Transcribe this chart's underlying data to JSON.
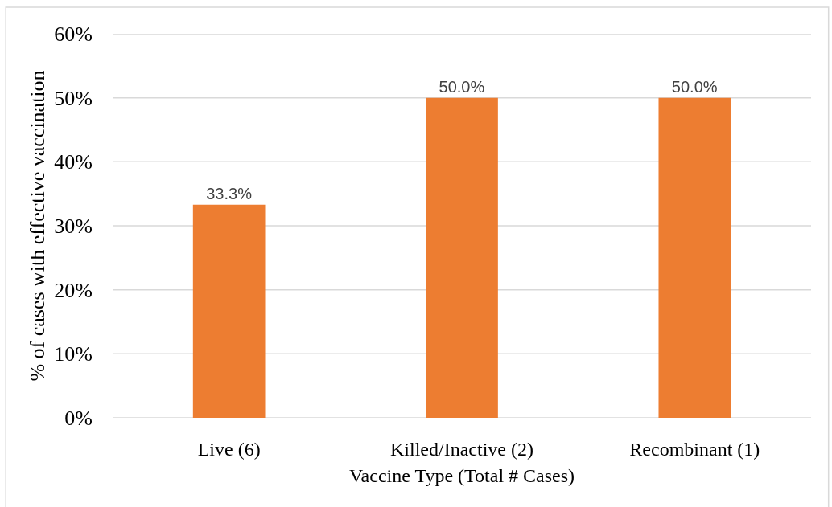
{
  "chart_data": {
    "type": "bar",
    "xlabel": "Vaccine Type (Total # Cases)",
    "ylabel": "% of cases with effective vaccination",
    "categories": [
      "Live (6)",
      "Killed/Inactive (2)",
      "Recombinant (1)"
    ],
    "values": [
      33.3,
      50.0,
      50.0
    ],
    "color": "#ed7d31",
    "value_labels": [
      "33.3%",
      "50.0%",
      "50.0%"
    ],
    "ylim": [
      0,
      60
    ],
    "yticks": [
      {
        "value": 0,
        "label": "0%"
      },
      {
        "value": 10,
        "label": "10%"
      },
      {
        "value": 20,
        "label": "20%"
      },
      {
        "value": 30,
        "label": "30%"
      },
      {
        "value": 40,
        "label": "40%"
      },
      {
        "value": 50,
        "label": "50%"
      },
      {
        "value": 60,
        "label": "60%"
      }
    ],
    "grid": "y"
  }
}
